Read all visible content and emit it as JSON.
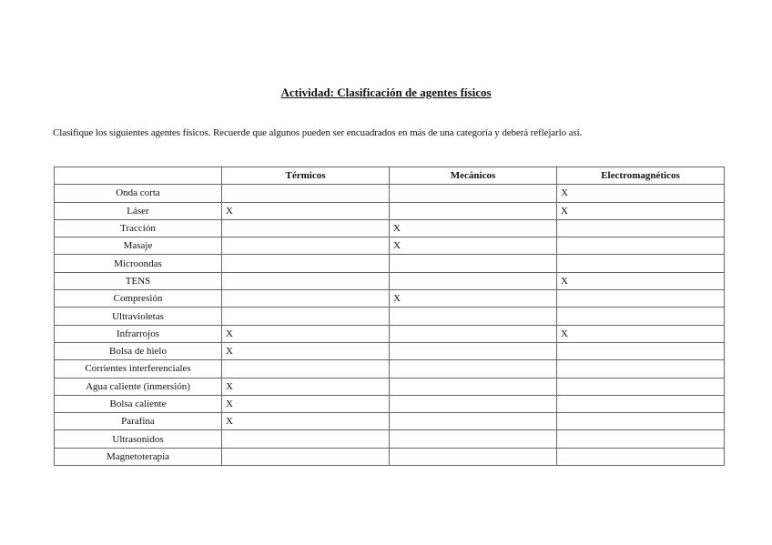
{
  "title": "Actividad: Clasificación de agentes físicos",
  "intro": "Clasifique los siguientes agentes físicos. Recuerde que algunos pueden ser encuadrados en más de una categoría y deberá reflejarlo así.",
  "table": {
    "headers": [
      "",
      "Térmicos",
      "Mecánicos",
      "Electromagnéticos"
    ],
    "rows": [
      {
        "agent": "Onda corta",
        "cells": [
          "",
          "",
          "X"
        ]
      },
      {
        "agent": "Láser",
        "cells": [
          "X",
          "",
          "X"
        ]
      },
      {
        "agent": "Tracción",
        "cells": [
          "",
          "X",
          ""
        ]
      },
      {
        "agent": "Masaje",
        "cells": [
          "",
          "X",
          ""
        ]
      },
      {
        "agent": "Microondas",
        "cells": [
          "",
          "",
          ""
        ]
      },
      {
        "agent": "TENS",
        "cells": [
          "",
          "",
          "X"
        ]
      },
      {
        "agent": "Compresión",
        "cells": [
          "",
          "X",
          ""
        ]
      },
      {
        "agent": "Ultravioletas",
        "cells": [
          "",
          "",
          ""
        ]
      },
      {
        "agent": "Infrarrojos",
        "cells": [
          "X",
          "",
          "X"
        ]
      },
      {
        "agent": "Bolsa de hielo",
        "cells": [
          "X",
          "",
          ""
        ]
      },
      {
        "agent": "Corrientes interferenciales",
        "cells": [
          "",
          "",
          ""
        ]
      },
      {
        "agent": "Agua caliente (inmersión)",
        "cells": [
          "X",
          "",
          ""
        ]
      },
      {
        "agent": "Bolsa caliente",
        "cells": [
          "X",
          "",
          ""
        ]
      },
      {
        "agent": "Parafina",
        "cells": [
          "X",
          "",
          ""
        ]
      },
      {
        "agent": "Ultrasonidos",
        "cells": [
          "",
          "",
          ""
        ]
      },
      {
        "agent": "Magnetoterapia",
        "cells": [
          "",
          "",
          ""
        ]
      }
    ]
  }
}
